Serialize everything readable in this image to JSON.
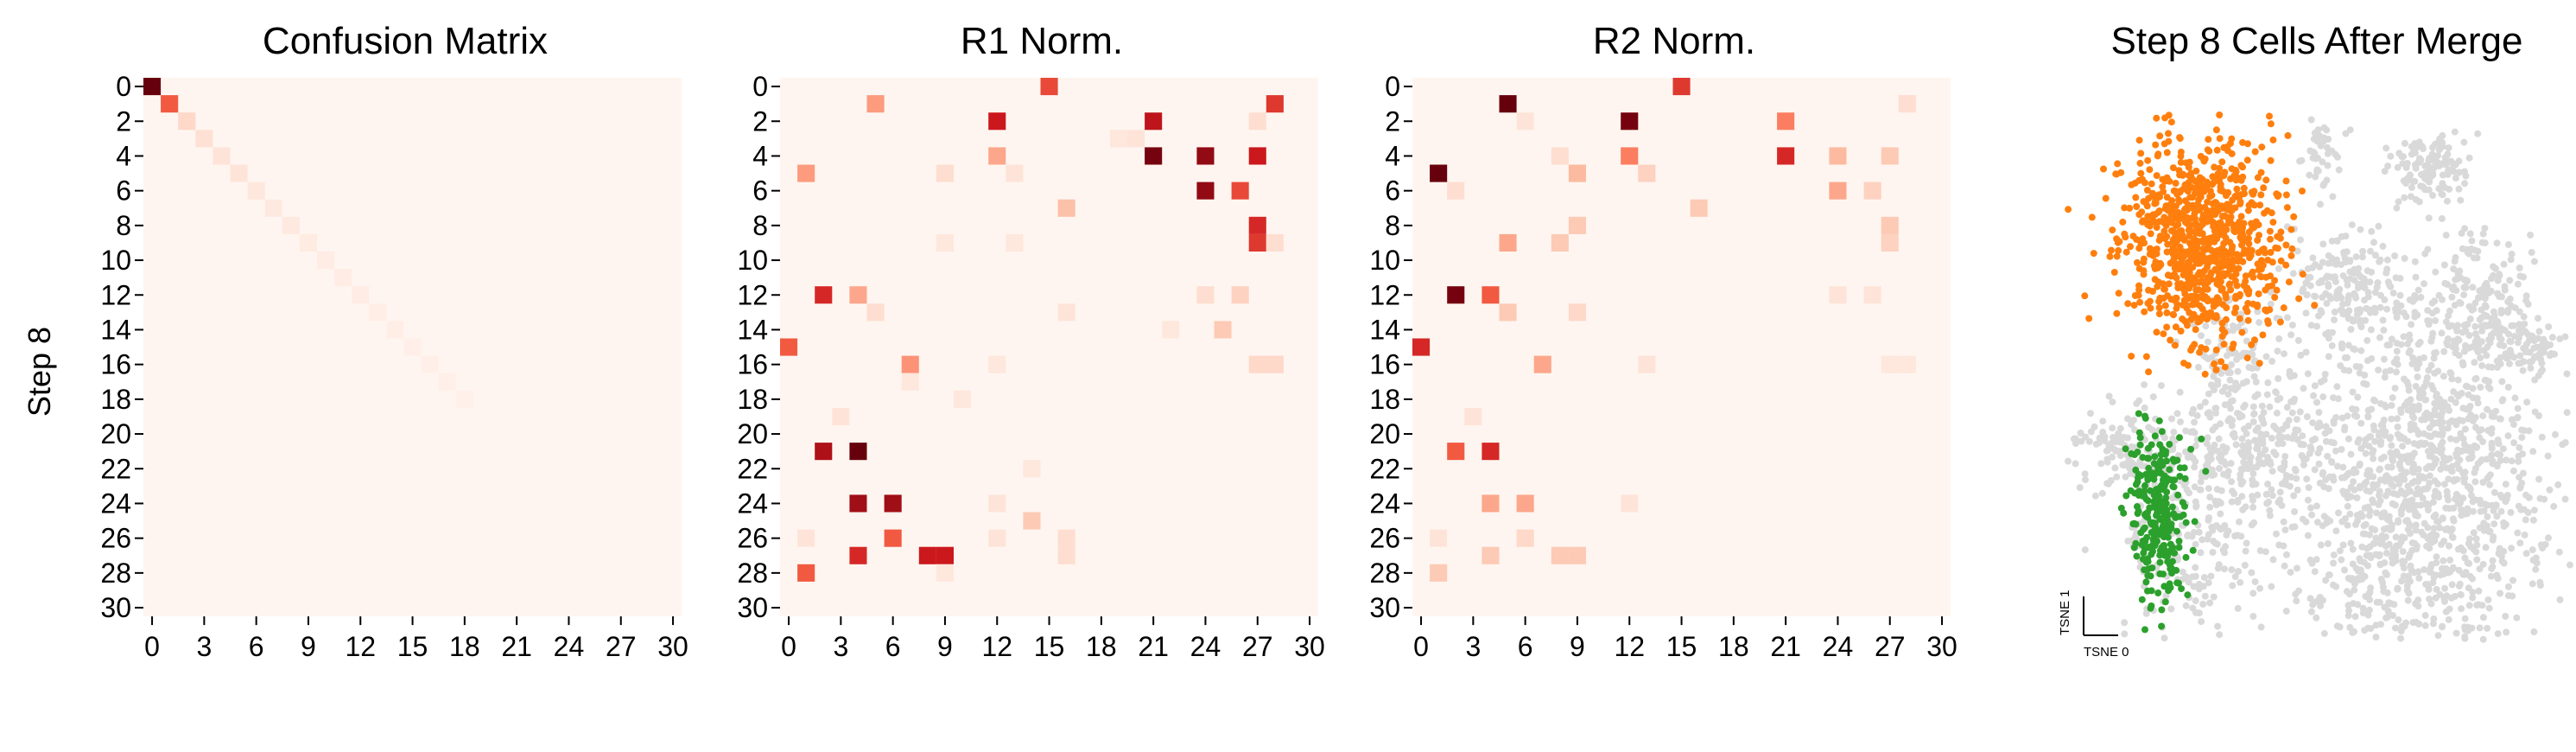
{
  "chart_data": [
    {
      "type": "heatmap",
      "title": "Confusion Matrix",
      "ylabel": "Step 8",
      "xlabel": "",
      "n_rows": 31,
      "n_cols": 31,
      "colormap": "Reds",
      "x_ticks": [
        "0",
        "3",
        "6",
        "9",
        "12",
        "15",
        "18",
        "21",
        "24",
        "27",
        "30"
      ],
      "y_ticks": [
        "0",
        "2",
        "4",
        "6",
        "8",
        "10",
        "12",
        "14",
        "16",
        "18",
        "20",
        "22",
        "24",
        "26",
        "28",
        "30"
      ],
      "cells": [
        [
          0,
          0,
          1.0
        ],
        [
          1,
          1,
          0.45
        ],
        [
          2,
          2,
          0.1
        ],
        [
          3,
          3,
          0.07
        ],
        [
          4,
          4,
          0.06
        ],
        [
          5,
          5,
          0.06
        ],
        [
          6,
          6,
          0.05
        ],
        [
          7,
          7,
          0.04
        ],
        [
          8,
          8,
          0.04
        ],
        [
          9,
          9,
          0.035
        ],
        [
          10,
          10,
          0.03
        ],
        [
          11,
          11,
          0.03
        ],
        [
          12,
          12,
          0.03
        ],
        [
          13,
          13,
          0.025
        ],
        [
          14,
          14,
          0.025
        ],
        [
          15,
          15,
          0.02
        ],
        [
          16,
          16,
          0.02
        ],
        [
          17,
          17,
          0.02
        ],
        [
          18,
          18,
          0.015
        ]
      ]
    },
    {
      "type": "heatmap",
      "title": "R1 Norm.",
      "xlabel": "",
      "ylabel": "",
      "n_rows": 31,
      "n_cols": 31,
      "colormap": "Reds",
      "x_ticks": [
        "0",
        "3",
        "6",
        "9",
        "12",
        "15",
        "18",
        "21",
        "24",
        "27",
        "30"
      ],
      "y_ticks": [
        "0",
        "2",
        "4",
        "6",
        "8",
        "10",
        "12",
        "14",
        "16",
        "18",
        "20",
        "22",
        "24",
        "26",
        "28",
        "30"
      ],
      "cells": [
        [
          0,
          15,
          0.5
        ],
        [
          1,
          5,
          0.28
        ],
        [
          1,
          28,
          0.55
        ],
        [
          2,
          12,
          0.65
        ],
        [
          2,
          21,
          0.7
        ],
        [
          2,
          27,
          0.08
        ],
        [
          3,
          19,
          0.05
        ],
        [
          3,
          20,
          0.06
        ],
        [
          4,
          12,
          0.25
        ],
        [
          4,
          21,
          0.95
        ],
        [
          4,
          24,
          0.85
        ],
        [
          4,
          27,
          0.65
        ],
        [
          5,
          1,
          0.28
        ],
        [
          5,
          9,
          0.08
        ],
        [
          5,
          13,
          0.06
        ],
        [
          6,
          24,
          0.85
        ],
        [
          6,
          26,
          0.5
        ],
        [
          7,
          16,
          0.18
        ],
        [
          8,
          27,
          0.6
        ],
        [
          9,
          27,
          0.55
        ],
        [
          9,
          28,
          0.08
        ],
        [
          9,
          9,
          0.05
        ],
        [
          9,
          13,
          0.05
        ],
        [
          12,
          2,
          0.6
        ],
        [
          12,
          4,
          0.25
        ],
        [
          12,
          24,
          0.08
        ],
        [
          12,
          26,
          0.12
        ],
        [
          13,
          5,
          0.08
        ],
        [
          13,
          16,
          0.06
        ],
        [
          14,
          22,
          0.05
        ],
        [
          14,
          25,
          0.15
        ],
        [
          15,
          0,
          0.45
        ],
        [
          16,
          7,
          0.3
        ],
        [
          16,
          12,
          0.05
        ],
        [
          16,
          27,
          0.1
        ],
        [
          16,
          28,
          0.1
        ],
        [
          17,
          7,
          0.05
        ],
        [
          18,
          10,
          0.05
        ],
        [
          19,
          3,
          0.06
        ],
        [
          21,
          2,
          0.75
        ],
        [
          21,
          4,
          1.0
        ],
        [
          22,
          14,
          0.05
        ],
        [
          24,
          4,
          0.8
        ],
        [
          24,
          6,
          0.8
        ],
        [
          24,
          12,
          0.06
        ],
        [
          25,
          14,
          0.15
        ],
        [
          26,
          6,
          0.45
        ],
        [
          26,
          1,
          0.06
        ],
        [
          26,
          12,
          0.06
        ],
        [
          26,
          16,
          0.08
        ],
        [
          27,
          4,
          0.6
        ],
        [
          27,
          8,
          0.65
        ],
        [
          27,
          9,
          0.65
        ],
        [
          27,
          16,
          0.08
        ],
        [
          28,
          1,
          0.45
        ],
        [
          28,
          9,
          0.05
        ]
      ]
    },
    {
      "type": "heatmap",
      "title": "R2 Norm.",
      "xlabel": "",
      "ylabel": "",
      "n_rows": 31,
      "n_cols": 31,
      "colormap": "Reds",
      "x_ticks": [
        "0",
        "3",
        "6",
        "9",
        "12",
        "15",
        "18",
        "21",
        "24",
        "27",
        "30"
      ],
      "y_ticks": [
        "0",
        "2",
        "4",
        "6",
        "8",
        "10",
        "12",
        "14",
        "16",
        "18",
        "20",
        "22",
        "24",
        "26",
        "28",
        "30"
      ],
      "cells": [
        [
          0,
          15,
          0.55
        ],
        [
          1,
          5,
          1.0
        ],
        [
          1,
          28,
          0.08
        ],
        [
          2,
          6,
          0.06
        ],
        [
          2,
          12,
          0.95
        ],
        [
          2,
          21,
          0.35
        ],
        [
          4,
          8,
          0.08
        ],
        [
          4,
          12,
          0.35
        ],
        [
          4,
          21,
          0.6
        ],
        [
          4,
          24,
          0.2
        ],
        [
          4,
          27,
          0.15
        ],
        [
          5,
          1,
          1.0
        ],
        [
          5,
          9,
          0.2
        ],
        [
          5,
          13,
          0.12
        ],
        [
          6,
          2,
          0.08
        ],
        [
          6,
          24,
          0.25
        ],
        [
          6,
          26,
          0.12
        ],
        [
          7,
          16,
          0.15
        ],
        [
          8,
          27,
          0.15
        ],
        [
          9,
          5,
          0.25
        ],
        [
          9,
          8,
          0.15
        ],
        [
          9,
          27,
          0.12
        ],
        [
          8,
          9,
          0.15
        ],
        [
          12,
          2,
          0.95
        ],
        [
          12,
          4,
          0.45
        ],
        [
          12,
          24,
          0.06
        ],
        [
          12,
          26,
          0.06
        ],
        [
          13,
          5,
          0.15
        ],
        [
          13,
          9,
          0.1
        ],
        [
          15,
          0,
          0.6
        ],
        [
          16,
          7,
          0.25
        ],
        [
          16,
          13,
          0.06
        ],
        [
          16,
          27,
          0.05
        ],
        [
          16,
          28,
          0.05
        ],
        [
          19,
          3,
          0.06
        ],
        [
          21,
          2,
          0.45
        ],
        [
          21,
          4,
          0.6
        ],
        [
          24,
          4,
          0.25
        ],
        [
          24,
          6,
          0.25
        ],
        [
          24,
          12,
          0.06
        ],
        [
          26,
          6,
          0.1
        ],
        [
          26,
          1,
          0.06
        ],
        [
          27,
          4,
          0.15
        ],
        [
          27,
          8,
          0.15
        ],
        [
          27,
          9,
          0.15
        ],
        [
          28,
          1,
          0.15
        ]
      ]
    },
    {
      "type": "scatter",
      "title": "Step 8 Cells After Merge",
      "xlabel": "TSNE 0",
      "ylabel": "TSNE 1",
      "series": [
        {
          "color": "#d9d9d9",
          "role": "background"
        },
        {
          "color": "#ff7f0e"
        },
        {
          "color": "#2ca02c"
        }
      ]
    }
  ]
}
